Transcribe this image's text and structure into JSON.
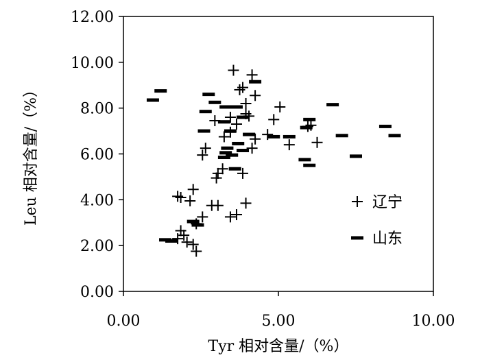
{
  "chart_data": {
    "type": "scatter",
    "title": "",
    "xlabel": "Tyr 相对含量/（%）",
    "ylabel": "Leu 相对含量/（%）",
    "xlim": [
      0,
      10
    ],
    "ylim": [
      0,
      12
    ],
    "x_ticks": [
      "0.00",
      "5.00",
      "10.00"
    ],
    "y_ticks": [
      "0.00",
      "2.00",
      "4.00",
      "6.00",
      "8.00",
      "10.00",
      "12.00"
    ],
    "grid": false,
    "legend_position": "right",
    "series": [
      {
        "name": "辽宁",
        "marker": "plus",
        "points": [
          [
            3.55,
            9.65
          ],
          [
            4.15,
            9.45
          ],
          [
            3.85,
            8.9
          ],
          [
            3.75,
            8.8
          ],
          [
            4.25,
            8.55
          ],
          [
            3.95,
            8.2
          ],
          [
            5.05,
            8.05
          ],
          [
            3.95,
            7.75
          ],
          [
            4.05,
            7.65
          ],
          [
            3.45,
            7.6
          ],
          [
            2.95,
            7.45
          ],
          [
            4.85,
            7.5
          ],
          [
            3.65,
            7.3
          ],
          [
            3.45,
            6.95
          ],
          [
            3.25,
            6.75
          ],
          [
            4.65,
            6.85
          ],
          [
            4.25,
            6.65
          ],
          [
            5.95,
            7.2
          ],
          [
            6.05,
            7.25
          ],
          [
            5.35,
            6.4
          ],
          [
            6.25,
            6.5
          ],
          [
            4.15,
            6.25
          ],
          [
            2.65,
            6.25
          ],
          [
            2.55,
            5.95
          ],
          [
            3.2,
            5.35
          ],
          [
            3.05,
            5.15
          ],
          [
            3.85,
            5.15
          ],
          [
            3.0,
            4.95
          ],
          [
            2.25,
            4.45
          ],
          [
            1.75,
            4.15
          ],
          [
            1.85,
            4.1
          ],
          [
            2.15,
            3.95
          ],
          [
            3.95,
            3.85
          ],
          [
            2.85,
            3.75
          ],
          [
            3.05,
            3.75
          ],
          [
            3.45,
            3.25
          ],
          [
            3.65,
            3.35
          ],
          [
            2.55,
            3.25
          ],
          [
            2.35,
            2.95
          ],
          [
            1.85,
            2.65
          ],
          [
            1.95,
            2.45
          ],
          [
            1.75,
            2.3
          ],
          [
            2.05,
            2.15
          ],
          [
            2.25,
            2.05
          ],
          [
            2.35,
            1.75
          ]
        ]
      },
      {
        "name": "山东",
        "marker": "dash",
        "points": [
          [
            1.2,
            8.75
          ],
          [
            0.95,
            8.35
          ],
          [
            2.75,
            8.6
          ],
          [
            2.95,
            8.25
          ],
          [
            3.3,
            8.05
          ],
          [
            3.65,
            8.05
          ],
          [
            2.65,
            7.85
          ],
          [
            3.85,
            7.6
          ],
          [
            3.25,
            7.4
          ],
          [
            4.25,
            9.15
          ],
          [
            6.75,
            8.15
          ],
          [
            6.0,
            7.5
          ],
          [
            5.9,
            7.15
          ],
          [
            3.45,
            7.0
          ],
          [
            4.05,
            6.85
          ],
          [
            2.6,
            7.0
          ],
          [
            4.85,
            6.75
          ],
          [
            5.35,
            6.75
          ],
          [
            7.05,
            6.8
          ],
          [
            8.45,
            7.2
          ],
          [
            8.75,
            6.8
          ],
          [
            3.7,
            6.45
          ],
          [
            3.35,
            6.25
          ],
          [
            3.85,
            6.15
          ],
          [
            3.3,
            6.05
          ],
          [
            3.5,
            5.95
          ],
          [
            3.25,
            5.85
          ],
          [
            5.85,
            5.75
          ],
          [
            6.0,
            5.5
          ],
          [
            7.5,
            5.9
          ],
          [
            3.6,
            5.35
          ],
          [
            2.25,
            3.05
          ],
          [
            2.4,
            2.9
          ],
          [
            1.35,
            2.25
          ],
          [
            1.55,
            2.2
          ]
        ]
      }
    ]
  }
}
